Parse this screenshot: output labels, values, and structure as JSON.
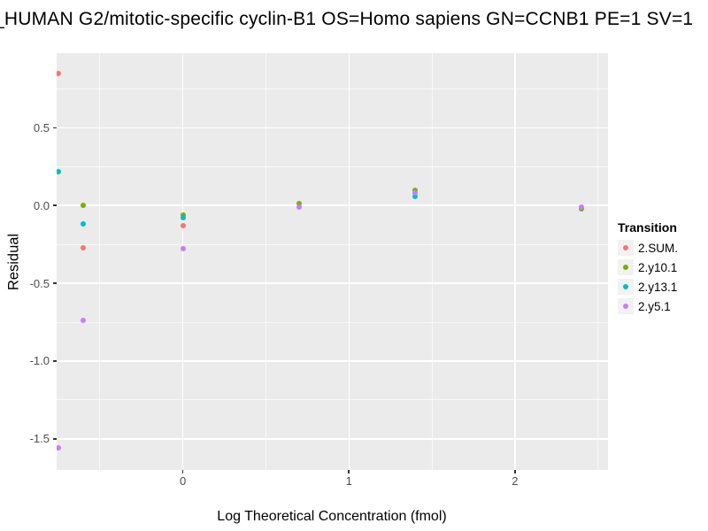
{
  "title": "_HUMAN G2/mitotic-specific cyclin-B1 OS=Homo sapiens GN=CCNB1 PE=1 SV=1",
  "colors": {
    "panel_bg": "#EBEBEB",
    "grid_major": "#FFFFFF",
    "tick_text": "#4D4D4D",
    "axis_text": "#000000",
    "legend_key_bg": "#F2F2F2"
  },
  "chart_data": {
    "type": "scatter",
    "title": "_HUMAN G2/mitotic-specific cyclin-B1 OS=Homo sapiens GN=CCNB1 PE=1 SV=1",
    "xlabel": "Log Theoretical Concentration (fmol)",
    "ylabel": "Residual",
    "xlim": [
      -0.76,
      2.56
    ],
    "ylim": [
      -1.7,
      0.98
    ],
    "x_ticks": [
      "0",
      "1",
      "2"
    ],
    "x_tick_values": [
      0,
      1,
      2
    ],
    "y_ticks": [
      "0.5",
      "0.0",
      "-0.5",
      "-1.0",
      "-1.5"
    ],
    "y_tick_values": [
      0.5,
      0.0,
      -0.5,
      -1.0,
      -1.5
    ],
    "x_minor_gridlines": [
      -0.5,
      0.5,
      1.5,
      2.5
    ],
    "y_minor_gridlines": [
      0.75,
      0.25,
      -0.25,
      -0.75,
      -1.25
    ],
    "grid": true,
    "legend": {
      "title": "Transition",
      "position": "right"
    },
    "series": [
      {
        "name": "2.SUM.",
        "color": "#F8766D",
        "points": [
          [
            -0.75,
            0.85
          ],
          [
            -0.6,
            -0.27
          ],
          [
            0.0,
            -0.13
          ]
        ]
      },
      {
        "name": "2.y10.1",
        "color": "#7CAE00",
        "points": [
          [
            -0.6,
            0.0
          ],
          [
            0.0,
            -0.06
          ],
          [
            0.7,
            0.01
          ],
          [
            1.4,
            0.1
          ],
          [
            2.4,
            -0.02
          ]
        ]
      },
      {
        "name": "2.y13.1",
        "color": "#00BFC4",
        "points": [
          [
            -0.75,
            0.22
          ],
          [
            -0.6,
            -0.12
          ],
          [
            0.0,
            -0.08
          ],
          [
            1.4,
            0.06
          ]
        ]
      },
      {
        "name": "2.y5.1",
        "color": "#C77CFF",
        "points": [
          [
            -0.75,
            -1.56
          ],
          [
            -0.6,
            -0.74
          ],
          [
            0.0,
            -0.28
          ],
          [
            0.7,
            -0.01
          ],
          [
            1.4,
            0.08
          ],
          [
            2.4,
            -0.01
          ]
        ]
      }
    ]
  }
}
